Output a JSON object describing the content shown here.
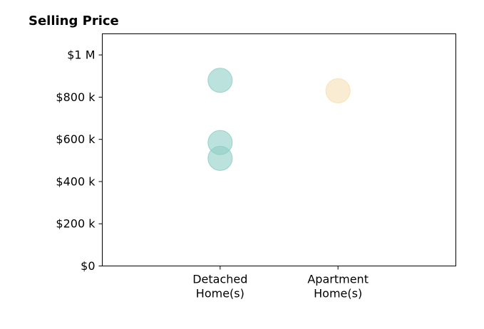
{
  "chart_data": {
    "type": "scatter",
    "title": "Selling Price",
    "xlabel": "",
    "ylabel": "",
    "categories": [
      [
        "Detached",
        "Home(s)"
      ],
      [
        "Apartment",
        "Home(s)"
      ]
    ],
    "x_range": [
      -1,
      2
    ],
    "ylim": [
      0,
      1100000
    ],
    "yticks": [
      {
        "value": 0,
        "label": "$0"
      },
      {
        "value": 200000,
        "label": "$200 k"
      },
      {
        "value": 400000,
        "label": "$400 k"
      },
      {
        "value": 600000,
        "label": "$600 k"
      },
      {
        "value": 800000,
        "label": "$800 k"
      },
      {
        "value": 1000000,
        "label": "$1 M"
      }
    ],
    "points": [
      {
        "category": 0,
        "y": 880000,
        "color": "#8fcfc6"
      },
      {
        "category": 0,
        "y": 585000,
        "color": "#8fcfc6"
      },
      {
        "category": 0,
        "y": 510000,
        "color": "#8fcfc6"
      },
      {
        "category": 1,
        "y": 830000,
        "color": "#f6e0b5"
      }
    ],
    "grid": false,
    "legend": "none"
  }
}
